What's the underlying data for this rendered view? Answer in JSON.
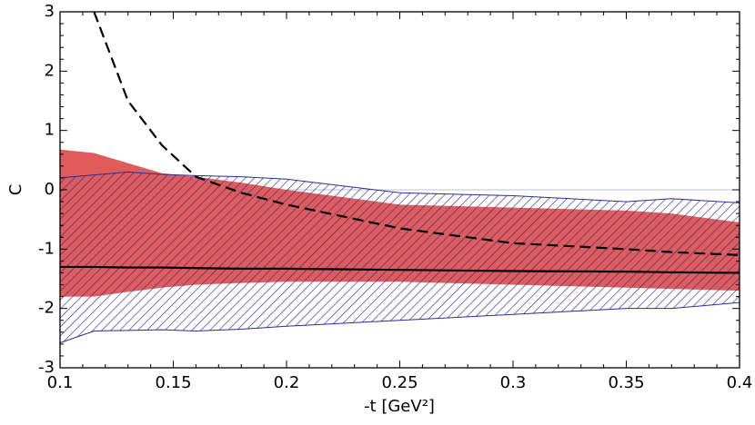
{
  "chart_data": {
    "type": "band-line",
    "x_label": "-t [GeV²]",
    "y_label": "C",
    "x": [
      0.1,
      0.115,
      0.13,
      0.145,
      0.16,
      0.18,
      0.2,
      0.25,
      0.3,
      0.35,
      0.37,
      0.4
    ],
    "xlim": [
      0.1,
      0.4
    ],
    "xticks": [
      0.1,
      0.15,
      0.2,
      0.25,
      0.3,
      0.35,
      0.4
    ],
    "ylim": [
      -3,
      3
    ],
    "yticks": [
      -3,
      -2,
      -1,
      0,
      1,
      2,
      3
    ],
    "series": [
      {
        "kind": "band",
        "style": "filled",
        "color": "#e05c5c",
        "upper": [
          0.68,
          0.62,
          0.45,
          0.28,
          0.22,
          0.12,
          0.0,
          -0.25,
          -0.3,
          -0.35,
          -0.4,
          -0.55
        ],
        "lower": [
          -1.8,
          -1.8,
          -1.72,
          -1.65,
          -1.6,
          -1.57,
          -1.55,
          -1.55,
          -1.6,
          -1.65,
          -1.67,
          -1.7
        ]
      },
      {
        "kind": "band",
        "style": "hatched",
        "color": "#2e2e8c",
        "upper": [
          0.2,
          0.25,
          0.3,
          0.26,
          0.24,
          0.22,
          0.18,
          -0.05,
          -0.1,
          -0.2,
          -0.15,
          -0.22
        ],
        "lower": [
          -2.58,
          -2.38,
          -2.37,
          -2.36,
          -2.38,
          -2.35,
          -2.3,
          -2.2,
          -2.1,
          -2.0,
          -2.0,
          -1.9
        ]
      },
      {
        "kind": "line",
        "style": "solid",
        "color": "#000000",
        "values": [
          -1.3,
          -1.3,
          -1.31,
          -1.31,
          -1.32,
          -1.33,
          -1.33,
          -1.35,
          -1.37,
          -1.38,
          -1.39,
          -1.4
        ]
      },
      {
        "kind": "line",
        "style": "dashed",
        "color": "#000000",
        "values": [
          null,
          3.0,
          1.5,
          0.75,
          0.22,
          -0.05,
          -0.25,
          -0.65,
          -0.9,
          -1.0,
          -1.05,
          -1.1
        ]
      }
    ]
  }
}
